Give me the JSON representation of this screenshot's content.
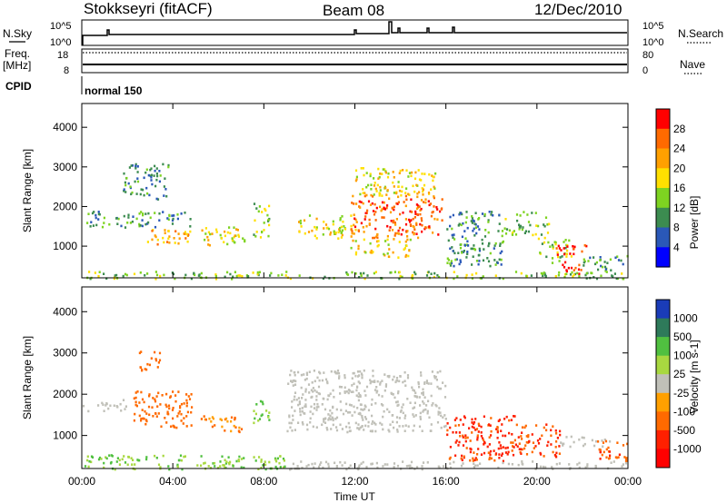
{
  "header": {
    "station": "Stokkseyri (fitACF)",
    "beam": "Beam 08",
    "date": "12/Dec/2010"
  },
  "left_labels": {
    "nsky": "N.Sky",
    "freq": "Freq.",
    "mhz": "[MHz]",
    "cpid": "CPID",
    "nsky_top": "10^5",
    "nsky_bottom": "10^0",
    "freq_top": "18",
    "freq_bottom": "8"
  },
  "right_labels": {
    "nsearch": "N.Search",
    "nave": "Nave",
    "nsearch_top": "10^5",
    "nsearch_bottom": "10^0",
    "nave_top": "80",
    "nave_bottom": "0"
  },
  "cpid_text": "normal 150",
  "colors": {
    "velocity_gray": "#c0c0b8",
    "axis": "#000000"
  },
  "chart_data": [
    {
      "type": "heatmap",
      "name": "power",
      "ylabel": "Slant Range [km]",
      "ylim": [
        200,
        4600
      ],
      "yticks": [
        1000,
        2000,
        3000,
        4000
      ],
      "colorbar_label": "Power [dB]",
      "colorbar": {
        "ticks": [
          "28",
          "24",
          "20",
          "16",
          "12",
          "8",
          "4"
        ],
        "colors": [
          "#ff0000",
          "#ff6a00",
          "#ffa000",
          "#ffe000",
          "#7ed321",
          "#3c8c50",
          "#2a58b8",
          "#0000ff"
        ]
      },
      "regions": [
        {
          "t0": 0.2,
          "t1": 4.8,
          "r0": 1500,
          "r1": 1900,
          "level": 8
        },
        {
          "t0": 1.8,
          "t1": 3.8,
          "r0": 2200,
          "r1": 3100,
          "level": 8
        },
        {
          "t0": 2.8,
          "t1": 4.8,
          "r0": 1050,
          "r1": 1500,
          "level": 20
        },
        {
          "t0": 5.2,
          "t1": 7.2,
          "r0": 1050,
          "r1": 1500,
          "level": 16
        },
        {
          "t0": 7.5,
          "t1": 8.2,
          "r0": 1200,
          "r1": 2100,
          "level": 12
        },
        {
          "t0": 9.5,
          "t1": 12.0,
          "r0": 1200,
          "r1": 1800,
          "level": 16
        },
        {
          "t0": 11.8,
          "t1": 15.8,
          "r0": 1200,
          "r1": 2300,
          "level": 24
        },
        {
          "t0": 11.8,
          "t1": 14.5,
          "r0": 700,
          "r1": 1200,
          "level": 16
        },
        {
          "t0": 12.0,
          "t1": 15.5,
          "r0": 2300,
          "r1": 3000,
          "level": 16
        },
        {
          "t0": 16.0,
          "t1": 18.5,
          "r0": 500,
          "r1": 1900,
          "level": 8
        },
        {
          "t0": 18.5,
          "t1": 20.5,
          "r0": 1300,
          "r1": 1900,
          "level": 12
        },
        {
          "t0": 20.0,
          "t1": 21.5,
          "r0": 600,
          "r1": 1300,
          "level": 12
        },
        {
          "t0": 20.8,
          "t1": 22.3,
          "r0": 800,
          "r1": 1050,
          "level": 28
        },
        {
          "t0": 21.0,
          "t1": 22.0,
          "r0": 300,
          "r1": 650,
          "level": 28
        },
        {
          "t0": 22.0,
          "t1": 24.0,
          "r0": 400,
          "r1": 800,
          "level": 8
        },
        {
          "t0": 0.0,
          "t1": 24.0,
          "r0": 200,
          "r1": 380,
          "level": 12
        }
      ]
    },
    {
      "type": "heatmap",
      "name": "velocity",
      "ylabel": "Slant Range [km]",
      "xlabel": "Time UT",
      "xlim": [
        0,
        24
      ],
      "xtick_labels": [
        "00:00",
        "04:00",
        "08:00",
        "12:00",
        "16:00",
        "20:00",
        "00:00"
      ],
      "ylim": [
        200,
        4600
      ],
      "yticks": [
        1000,
        2000,
        3000,
        4000
      ],
      "colorbar_label": "Velocity [m s-1]",
      "colorbar": {
        "ticks": [
          "1000",
          "500",
          "100",
          "25",
          "-25",
          "-100",
          "-500",
          "-1000"
        ],
        "colors": [
          "#1a3cb8",
          "#2e7a5a",
          "#50c040",
          "#a8d840",
          "#c0c0b8",
          "#ffa000",
          "#ff6a00",
          "#ff2000",
          "#ff0000"
        ]
      },
      "regions": [
        {
          "t0": 0.0,
          "t1": 2.0,
          "r0": 1600,
          "r1": 1900,
          "v": 0
        },
        {
          "t0": 2.2,
          "t1": 4.8,
          "r0": 1200,
          "r1": 2100,
          "v": -200
        },
        {
          "t0": 2.5,
          "t1": 3.5,
          "r0": 2600,
          "r1": 3100,
          "v": -200
        },
        {
          "t0": 5.2,
          "t1": 7.0,
          "r0": 1100,
          "r1": 1500,
          "v": -100
        },
        {
          "t0": 7.5,
          "t1": 8.2,
          "r0": 1300,
          "r1": 1900,
          "v": 100
        },
        {
          "t0": 9.0,
          "t1": 16.0,
          "r0": 1100,
          "r1": 2600,
          "v": 0
        },
        {
          "t0": 16.0,
          "t1": 19.0,
          "r0": 400,
          "r1": 1500,
          "v": -600
        },
        {
          "t0": 19.0,
          "t1": 21.0,
          "r0": 500,
          "r1": 1300,
          "v": -500
        },
        {
          "t0": 21.0,
          "t1": 23.2,
          "r0": 750,
          "r1": 1000,
          "v": 0
        },
        {
          "t0": 22.5,
          "t1": 24.0,
          "r0": 400,
          "r1": 900,
          "v": -400
        },
        {
          "t0": 0.0,
          "t1": 9.0,
          "r0": 200,
          "r1": 550,
          "v": 100
        },
        {
          "t0": 9.0,
          "t1": 24.0,
          "r0": 200,
          "r1": 400,
          "v": 0
        }
      ]
    }
  ]
}
